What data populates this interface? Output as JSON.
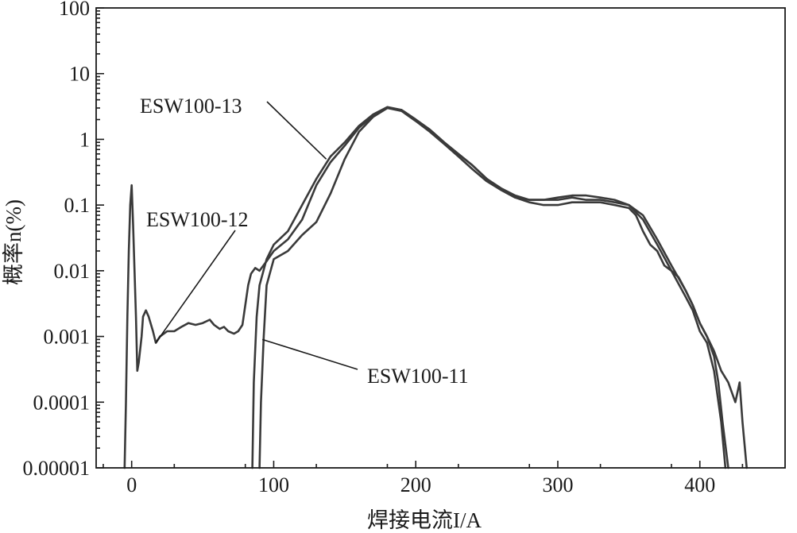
{
  "chart_data": {
    "type": "line",
    "title": "",
    "xlabel": "焊接电流I/A",
    "ylabel": "概率n(%)",
    "y_scale": "log",
    "xlim": [
      -25,
      460
    ],
    "ylim": [
      1e-05,
      100
    ],
    "grid": false,
    "x_ticks": [
      0,
      100,
      200,
      300,
      400
    ],
    "y_ticks": [
      {
        "value": 100,
        "label": "100"
      },
      {
        "value": 10,
        "label": "10"
      },
      {
        "value": 1,
        "label": "1"
      },
      {
        "value": 0.1,
        "label": "0.1"
      },
      {
        "value": 0.01,
        "label": "0.01"
      },
      {
        "value": 0.001,
        "label": "0.001"
      },
      {
        "value": 0.0001,
        "label": "0.0001"
      },
      {
        "value": 1e-05,
        "label": "0.00001"
      }
    ],
    "line_color": "#3a3a3a",
    "series": [
      {
        "annotation": "ESW100-12",
        "points": [
          [
            -5,
            1e-05
          ],
          [
            -4,
            0.0001
          ],
          [
            -3,
            0.002
          ],
          [
            -2,
            0.02
          ],
          [
            -1,
            0.1
          ],
          [
            0,
            0.2
          ],
          [
            1,
            0.05
          ],
          [
            2,
            0.01
          ],
          [
            3,
            0.002
          ],
          [
            4,
            0.0003
          ],
          [
            5,
            0.0004
          ],
          [
            7,
            0.001
          ],
          [
            8,
            0.002
          ],
          [
            10,
            0.0025
          ],
          [
            12,
            0.002
          ],
          [
            15,
            0.0012
          ],
          [
            17,
            0.0008
          ],
          [
            20,
            0.001
          ],
          [
            25,
            0.0012
          ],
          [
            30,
            0.0012
          ],
          [
            35,
            0.0014
          ],
          [
            40,
            0.0016
          ],
          [
            45,
            0.0015
          ],
          [
            50,
            0.0016
          ],
          [
            55,
            0.0018
          ],
          [
            58,
            0.0015
          ],
          [
            62,
            0.0013
          ],
          [
            65,
            0.0014
          ],
          [
            68,
            0.0012
          ],
          [
            72,
            0.0011
          ],
          [
            75,
            0.0012
          ],
          [
            78,
            0.0015
          ],
          [
            80,
            0.003
          ],
          [
            82,
            0.006
          ],
          [
            84,
            0.009
          ],
          [
            87,
            0.011
          ],
          [
            90,
            0.01
          ],
          [
            95,
            0.014
          ],
          [
            100,
            0.02
          ],
          [
            110,
            0.03
          ],
          [
            120,
            0.06
          ],
          [
            130,
            0.2
          ],
          [
            140,
            0.45
          ],
          [
            150,
            0.8
          ],
          [
            160,
            1.5
          ],
          [
            170,
            2.3
          ],
          [
            180,
            3.0
          ],
          [
            190,
            2.8
          ],
          [
            200,
            2.0
          ],
          [
            210,
            1.4
          ],
          [
            220,
            0.9
          ],
          [
            230,
            0.6
          ],
          [
            240,
            0.4
          ],
          [
            250,
            0.25
          ],
          [
            260,
            0.18
          ],
          [
            270,
            0.14
          ],
          [
            280,
            0.12
          ],
          [
            290,
            0.12
          ],
          [
            300,
            0.13
          ],
          [
            310,
            0.14
          ],
          [
            320,
            0.14
          ],
          [
            330,
            0.13
          ],
          [
            340,
            0.12
          ],
          [
            350,
            0.1
          ],
          [
            360,
            0.06
          ],
          [
            370,
            0.025
          ],
          [
            380,
            0.01
          ],
          [
            390,
            0.004
          ],
          [
            395,
            0.0025
          ],
          [
            400,
            0.0012
          ],
          [
            405,
            0.0008
          ],
          [
            410,
            0.0003
          ],
          [
            415,
            5e-05
          ],
          [
            418,
            1e-05
          ]
        ]
      },
      {
        "annotation": "ESW100-13",
        "points": [
          [
            85,
            1e-05
          ],
          [
            86,
            0.0002
          ],
          [
            88,
            0.002
          ],
          [
            90,
            0.006
          ],
          [
            95,
            0.015
          ],
          [
            100,
            0.025
          ],
          [
            110,
            0.04
          ],
          [
            120,
            0.1
          ],
          [
            130,
            0.25
          ],
          [
            140,
            0.55
          ],
          [
            150,
            0.9
          ],
          [
            160,
            1.6
          ],
          [
            170,
            2.4
          ],
          [
            180,
            3.1
          ],
          [
            190,
            2.8
          ],
          [
            200,
            2.0
          ],
          [
            210,
            1.4
          ],
          [
            220,
            0.9
          ],
          [
            230,
            0.6
          ],
          [
            240,
            0.4
          ],
          [
            250,
            0.25
          ],
          [
            260,
            0.17
          ],
          [
            270,
            0.13
          ],
          [
            280,
            0.11
          ],
          [
            290,
            0.1
          ],
          [
            300,
            0.1
          ],
          [
            310,
            0.11
          ],
          [
            320,
            0.11
          ],
          [
            330,
            0.11
          ],
          [
            340,
            0.1
          ],
          [
            350,
            0.09
          ],
          [
            355,
            0.07
          ],
          [
            360,
            0.04
          ],
          [
            365,
            0.025
          ],
          [
            370,
            0.02
          ],
          [
            375,
            0.012
          ],
          [
            380,
            0.01
          ],
          [
            385,
            0.008
          ],
          [
            390,
            0.005
          ],
          [
            395,
            0.003
          ],
          [
            400,
            0.0016
          ],
          [
            405,
            0.001
          ],
          [
            410,
            0.0006
          ],
          [
            415,
            0.0003
          ],
          [
            420,
            0.0002
          ],
          [
            425,
            0.0001
          ],
          [
            428,
            0.0002
          ],
          [
            430,
            5e-05
          ],
          [
            433,
            1e-05
          ]
        ]
      },
      {
        "annotation": "ESW100-11",
        "points": [
          [
            90,
            1e-05
          ],
          [
            91,
            0.0001
          ],
          [
            93,
            0.001
          ],
          [
            95,
            0.006
          ],
          [
            100,
            0.015
          ],
          [
            110,
            0.02
          ],
          [
            120,
            0.035
          ],
          [
            130,
            0.055
          ],
          [
            140,
            0.15
          ],
          [
            150,
            0.5
          ],
          [
            160,
            1.3
          ],
          [
            170,
            2.2
          ],
          [
            180,
            3.0
          ],
          [
            190,
            2.7
          ],
          [
            200,
            1.9
          ],
          [
            210,
            1.3
          ],
          [
            220,
            0.85
          ],
          [
            230,
            0.55
          ],
          [
            240,
            0.35
          ],
          [
            250,
            0.23
          ],
          [
            260,
            0.17
          ],
          [
            270,
            0.13
          ],
          [
            280,
            0.12
          ],
          [
            290,
            0.12
          ],
          [
            300,
            0.12
          ],
          [
            310,
            0.13
          ],
          [
            320,
            0.12
          ],
          [
            330,
            0.12
          ],
          [
            340,
            0.11
          ],
          [
            350,
            0.1
          ],
          [
            360,
            0.07
          ],
          [
            370,
            0.03
          ],
          [
            380,
            0.012
          ],
          [
            390,
            0.005
          ],
          [
            395,
            0.003
          ],
          [
            400,
            0.0016
          ],
          [
            405,
            0.001
          ],
          [
            410,
            0.0005
          ],
          [
            413,
            0.0002
          ],
          [
            416,
            5e-05
          ],
          [
            420,
            1e-05
          ]
        ]
      }
    ],
    "annotations": [
      {
        "text": "ESW100-13",
        "target": [
          137,
          0.5
        ]
      },
      {
        "text": "ESW100-12",
        "target": [
          17,
          0.0008
        ]
      },
      {
        "text": "ESW100-11",
        "target": [
          92,
          0.0009
        ]
      }
    ]
  }
}
